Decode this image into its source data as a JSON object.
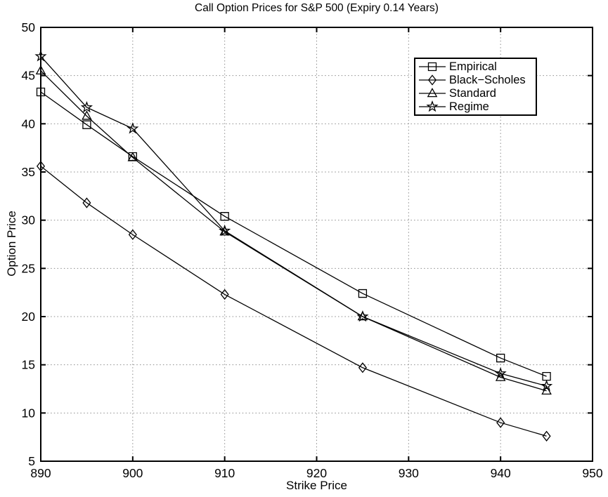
{
  "chart_data": {
    "type": "line",
    "title": "Call Option Prices for S&P 500 (Expiry 0.14 Years)",
    "xlabel": "Strike Price",
    "ylabel": "Option Price",
    "xlim": [
      890,
      950
    ],
    "ylim": [
      5,
      50
    ],
    "xticks": [
      890,
      900,
      910,
      920,
      930,
      940,
      950
    ],
    "yticks": [
      5,
      10,
      15,
      20,
      25,
      30,
      35,
      40,
      45,
      50
    ],
    "grid": true,
    "legend_position": "top-right",
    "x": [
      890,
      895,
      900,
      910,
      925,
      940,
      945
    ],
    "series": [
      {
        "name": "Empirical",
        "marker": "square",
        "values": [
          43.3,
          39.9,
          36.6,
          30.4,
          22.4,
          15.7,
          13.8
        ]
      },
      {
        "name": "Black−Scholes",
        "marker": "diamond",
        "values": [
          35.6,
          31.8,
          28.5,
          22.3,
          14.7,
          9.0,
          7.6
        ]
      },
      {
        "name": "Standard",
        "marker": "triangle",
        "values": [
          45.5,
          40.8,
          36.5,
          28.8,
          20.0,
          13.7,
          12.3
        ]
      },
      {
        "name": "Regime",
        "marker": "star",
        "values": [
          47.0,
          41.7,
          39.5,
          28.9,
          20.0,
          14.1,
          12.8
        ]
      }
    ],
    "line_color": "#000000",
    "grid_color": "#8c8c8c",
    "axis_color": "#000000",
    "background": "#ffffff"
  }
}
